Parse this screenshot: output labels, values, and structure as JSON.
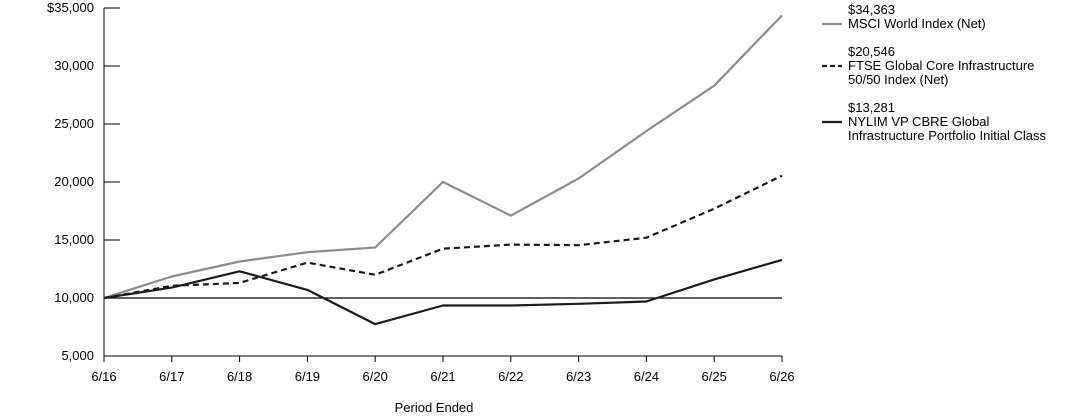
{
  "chart_data": {
    "type": "line",
    "title": "",
    "xlabel": "Period Ended",
    "ylabel": "",
    "categories": [
      "6/16",
      "6/17",
      "6/18",
      "6/19",
      "6/20",
      "6/21",
      "6/22",
      "6/23",
      "6/24",
      "6/25",
      "6/26"
    ],
    "y_ticks": [
      "$35,000",
      "30,000",
      "25,000",
      "20,000",
      "15,000",
      "10,000",
      "5,000"
    ],
    "y_tick_values": [
      35000,
      30000,
      25000,
      20000,
      15000,
      10000,
      5000
    ],
    "ylim": [
      5000,
      35000
    ],
    "baseline": 10000,
    "grid": false,
    "legend_position": "right",
    "series": [
      {
        "name": "MSCI World Index (Net)",
        "end_value_label": "$34,363",
        "style": "solid",
        "color": "#8c8c8c",
        "values": [
          10000,
          11850,
          13150,
          13950,
          14350,
          20000,
          17100,
          20300,
          24400,
          28300,
          34363
        ]
      },
      {
        "name": "FTSE Global Core Infrastructure 50/50 Index (Net)",
        "name_lines": [
          "FTSE Global Core Infrastructure",
          "50/50 Index (Net)"
        ],
        "end_value_label": "$20,546",
        "style": "dashed",
        "color": "#1a1a1a",
        "values": [
          10000,
          11050,
          11300,
          13050,
          12000,
          14250,
          14600,
          14550,
          15200,
          17700,
          20546
        ]
      },
      {
        "name": "NYLIM VP CBRE Global Infrastructure Portfolio Initial Class",
        "name_lines": [
          "NYLIM VP CBRE Global",
          "Infrastructure Portfolio Initial Class"
        ],
        "end_value_label": "$13,281",
        "style": "solid",
        "color": "#1a1a1a",
        "values": [
          10000,
          10900,
          12300,
          10700,
          7750,
          9350,
          9350,
          9500,
          9700,
          11600,
          13281
        ]
      }
    ]
  }
}
